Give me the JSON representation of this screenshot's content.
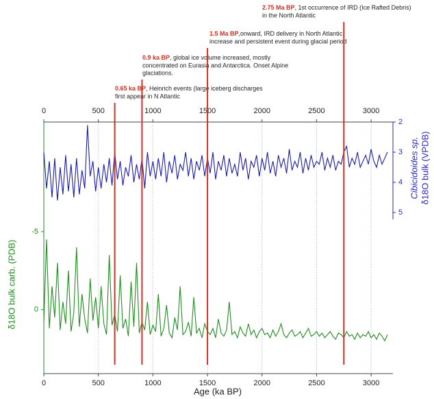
{
  "chart_data": {
    "type": "line",
    "xlabel": "Age (ka BP)",
    "ylabel": "δ18O bulk carb. (PDB)",
    "y2label": [
      "Cibicidoides sp.",
      "δ18O bulk (VPDB)"
    ],
    "xlim": [
      0,
      3200
    ],
    "xticks": [
      0,
      500,
      1000,
      1500,
      2000,
      2500,
      3000
    ],
    "ylim": [
      -7.5,
      4.1
    ],
    "yticks": [
      -5,
      0
    ],
    "y2lim": [
      2,
      5
    ],
    "y2ticks": [
      2,
      3,
      4,
      5
    ],
    "grid": true,
    "x": [
      0,
      25,
      50,
      75,
      100,
      125,
      150,
      175,
      200,
      225,
      250,
      275,
      300,
      325,
      350,
      375,
      400,
      425,
      450,
      475,
      500,
      525,
      550,
      575,
      600,
      625,
      650,
      675,
      700,
      725,
      750,
      775,
      800,
      825,
      850,
      875,
      900,
      925,
      950,
      975,
      1000,
      1025,
      1050,
      1075,
      1100,
      1125,
      1150,
      1175,
      1200,
      1225,
      1250,
      1275,
      1300,
      1325,
      1350,
      1375,
      1400,
      1425,
      1450,
      1475,
      1500,
      1525,
      1550,
      1575,
      1600,
      1625,
      1650,
      1675,
      1700,
      1725,
      1750,
      1775,
      1800,
      1825,
      1850,
      1875,
      1900,
      1925,
      1950,
      1975,
      2000,
      2025,
      2050,
      2075,
      2100,
      2125,
      2150,
      2175,
      2200,
      2225,
      2250,
      2275,
      2300,
      2325,
      2350,
      2375,
      2400,
      2425,
      2450,
      2475,
      2500,
      2525,
      2550,
      2575,
      2600,
      2625,
      2650,
      2675,
      2700,
      2725,
      2750,
      2775,
      2800,
      2825,
      2850,
      2875,
      2900,
      2925,
      2950,
      2975,
      3000,
      3025,
      3050,
      3075,
      3100,
      3125,
      3150
    ],
    "series": [
      {
        "color": "#1a1aa8",
        "axis": "y2",
        "values": [
          3.0,
          4.2,
          3.3,
          4.5,
          3.2,
          4.6,
          3.5,
          4.4,
          3.1,
          4.3,
          3.4,
          4.5,
          3.2,
          4.4,
          3.6,
          4.2,
          2.1,
          3.8,
          3.3,
          4.3,
          3.5,
          4.2,
          3.4,
          4.0,
          3.2,
          4.1,
          3.0,
          3.9,
          3.3,
          4.1,
          3.5,
          3.8,
          3.1,
          4.0,
          3.4,
          3.9,
          3.2,
          4.2,
          3.0,
          3.8,
          3.3,
          3.9,
          3.2,
          3.8,
          3.0,
          4.0,
          3.3,
          3.7,
          3.1,
          3.9,
          3.4,
          3.6,
          3.0,
          3.8,
          3.2,
          3.9,
          3.3,
          3.6,
          3.1,
          3.8,
          3.2,
          3.7,
          3.0,
          3.9,
          3.3,
          3.6,
          3.1,
          3.8,
          3.2,
          3.7,
          3.4,
          3.8,
          3.0,
          3.6,
          3.2,
          3.9,
          3.3,
          3.5,
          3.1,
          3.8,
          3.2,
          3.6,
          3.0,
          3.7,
          3.3,
          3.8,
          3.1,
          3.5,
          3.2,
          3.7,
          2.9,
          3.6,
          3.3,
          3.5,
          3.0,
          3.7,
          3.2,
          3.6,
          3.1,
          3.5,
          3.3,
          3.4,
          3.0,
          3.6,
          3.2,
          3.5,
          3.1,
          3.6,
          3.3,
          3.4,
          3.0,
          2.8,
          3.5,
          3.2,
          3.4,
          3.0,
          3.5,
          3.3,
          3.1,
          3.4,
          2.9,
          3.3,
          3.5,
          3.1,
          3.4,
          3.2,
          3.0
        ]
      },
      {
        "color": "#1e8c1e",
        "axis": "y",
        "values": [
          0.8,
          -4.5,
          1.2,
          -1.5,
          0.5,
          -3.0,
          1.3,
          -0.5,
          0.9,
          -2.5,
          1.4,
          0.2,
          -4.0,
          1.1,
          -1.0,
          0.6,
          1.5,
          -2.0,
          0.7,
          -0.8,
          1.2,
          -1.5,
          0.9,
          1.6,
          -3.5,
          1.0,
          0.3,
          1.4,
          -2.2,
          1.2,
          0.6,
          1.7,
          -1.8,
          1.1,
          -3.0,
          1.5,
          0.8,
          1.3,
          -0.5,
          1.6,
          1.0,
          1.4,
          -1.0,
          1.7,
          1.2,
          -0.3,
          1.5,
          1.8,
          0.5,
          1.3,
          -1.5,
          1.6,
          1.4,
          0.8,
          1.7,
          -0.8,
          1.5,
          1.2,
          1.8,
          0.9,
          1.4,
          1.6,
          1.2,
          1.8,
          0.6,
          1.5,
          1.7,
          1.3,
          -0.5,
          1.6,
          1.4,
          1.8,
          1.1,
          1.5,
          1.7,
          0.9,
          1.6,
          1.3,
          1.8,
          1.4,
          1.2,
          1.6,
          1.5,
          1.8,
          1.3,
          1.7,
          1.4,
          0.9,
          1.6,
          1.8,
          1.5,
          1.3,
          1.7,
          1.6,
          1.4,
          1.8,
          1.5,
          1.2,
          1.7,
          1.6,
          1.4,
          1.7,
          1.5,
          1.8,
          1.6,
          1.4,
          1.7,
          1.9,
          1.5,
          1.6,
          1.8,
          1.4,
          1.7,
          1.6,
          1.9,
          1.5,
          1.8,
          1.6,
          1.7,
          1.4,
          1.8,
          1.6,
          1.9,
          1.5,
          1.7,
          2.0,
          1.6
        ]
      }
    ],
    "event_color": "#d03020",
    "annotations": [
      {
        "x": 650,
        "label": "0.65 ka BP",
        "lines": [
          ", Heinrich events (large iceberg discharges",
          "first appear in N Atlantic"
        ]
      },
      {
        "x": 900,
        "label": "0.9 ka BP",
        "lines": [
          ", global ice volume increased, mostly",
          "concentrated on Eurasia and Antarctica. Onset Alpine",
          "glaciations."
        ]
      },
      {
        "x": 1500,
        "label": "1.5 Ma BP",
        "lines": [
          ",onward, IRD delivery in North Atlantic",
          "increase and persistent event during glacial period"
        ]
      },
      {
        "x": 2750,
        "label": "2.75 Ma BP",
        "lines": [
          ", 1st occurrence of IRD (Ice Rafted Debris)",
          "in the North Atlantic"
        ]
      }
    ]
  }
}
